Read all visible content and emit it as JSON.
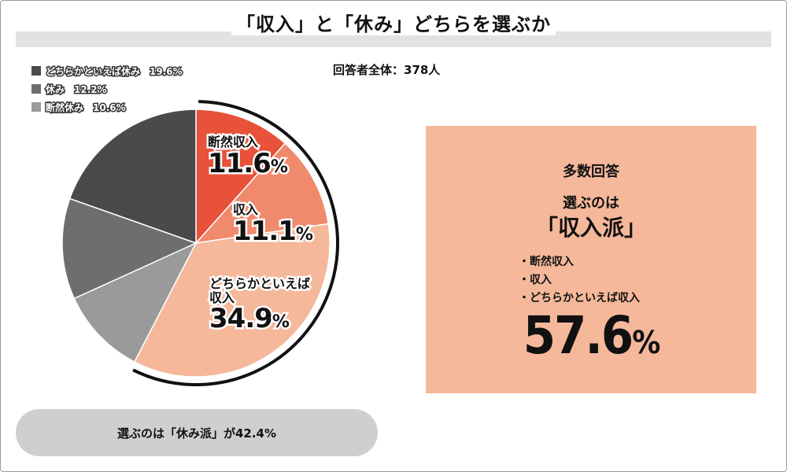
{
  "title": "「収入」と「休み」どちらを選ぶか",
  "total_label": "回答者全体：378人",
  "legend": [
    {
      "label": "どちらかといえば休み　19.6%",
      "color": "#4a4a4a"
    },
    {
      "label": "休み　12.2%",
      "color": "#6e6e6e"
    },
    {
      "label": "断然休み　10.6%",
      "color": "#9a9a9a"
    }
  ],
  "slice_labels": [
    {
      "name": "断然収入",
      "pct": "11.6",
      "unit": "%"
    },
    {
      "name": "収入",
      "pct": "11.1",
      "unit": "%"
    },
    {
      "name": "どちらかといえば\n収入",
      "pct": "34.9",
      "unit": "%"
    }
  ],
  "summary": {
    "heading": "多数回答",
    "line1": "選ぶのは",
    "line2": "「収入派」",
    "items": [
      "断然収入",
      "収入",
      "どちらかといえば収入"
    ],
    "big_value": "57.6",
    "big_unit": "%"
  },
  "rest_note": "選ぶのは「休み派」が42.4%",
  "chart_data": {
    "type": "pie",
    "title": "「収入」と「休み」どちらを選ぶか",
    "start": "12 o'clock, clockwise",
    "slices": [
      {
        "label": "断然収入",
        "value": 11.6,
        "color": "#e8513a"
      },
      {
        "label": "収入",
        "value": 11.1,
        "color": "#f08a6c"
      },
      {
        "label": "どちらかといえば収入",
        "value": 34.9,
        "color": "#f5b89b"
      },
      {
        "label": "断然休み",
        "value": 10.6,
        "color": "#9a9a9a"
      },
      {
        "label": "休み",
        "value": 12.2,
        "color": "#6e6e6e"
      },
      {
        "label": "どちらかといえば休み",
        "value": 19.6,
        "color": "#4a4a4a"
      }
    ],
    "highlight_arc": {
      "from_slice": 0,
      "to_slice": 2,
      "color": "#111111"
    }
  }
}
